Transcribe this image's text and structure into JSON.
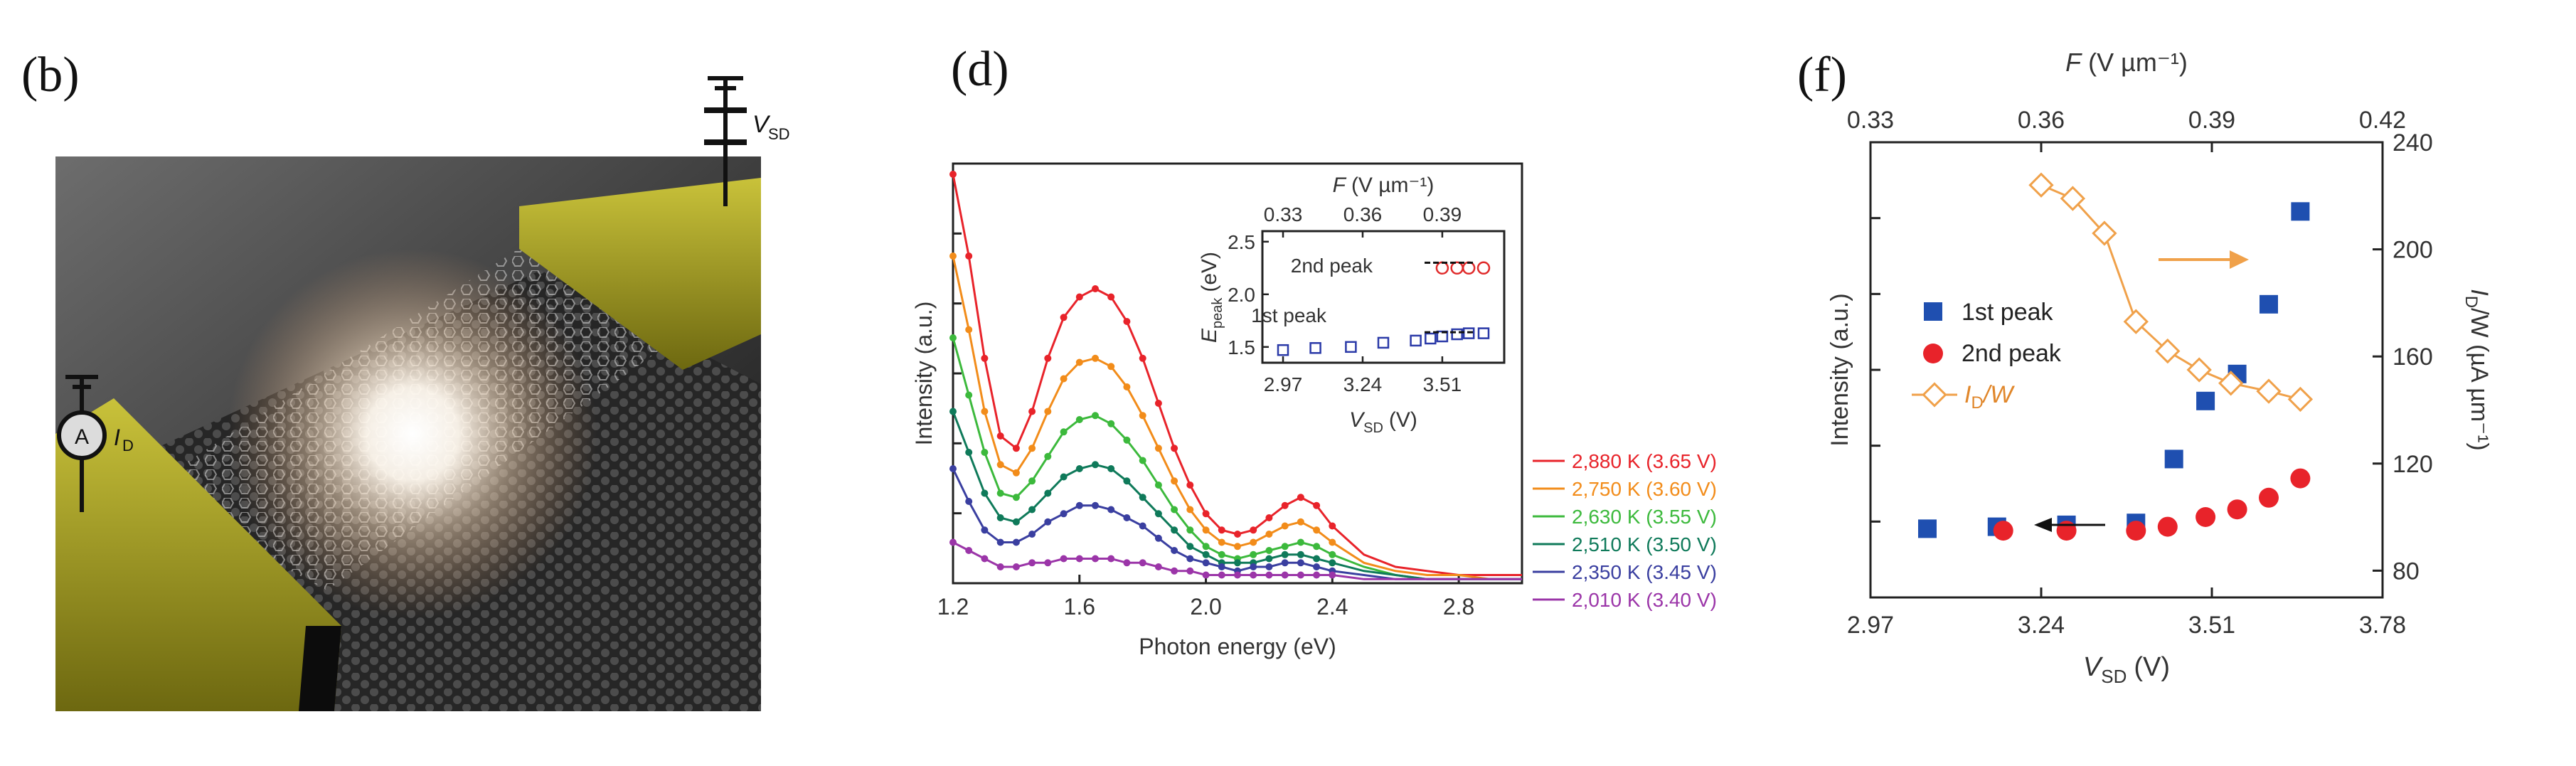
{
  "panel_b": {
    "label": "(b)",
    "vsd_label": "V",
    "vsd_sub": "SD",
    "ammeter": "A",
    "id_label": "I",
    "id_sub": "D"
  },
  "chart_data": [
    {
      "id": "d",
      "type": "line",
      "panel_label": "(d)",
      "title": "",
      "xlabel": "Photon energy (eV)",
      "ylabel": "Intensity (a.u.)",
      "xlim": [
        1.2,
        3.0
      ],
      "xticks": [
        "1.2",
        "1.6",
        "2.0",
        "2.4",
        "2.8"
      ],
      "series": [
        {
          "name": "2,880 K (3.65 V)",
          "color": "#e8232a",
          "x": [
            1.2,
            1.25,
            1.3,
            1.35,
            1.4,
            1.45,
            1.5,
            1.55,
            1.6,
            1.65,
            1.7,
            1.75,
            1.8,
            1.85,
            1.9,
            1.95,
            2.0,
            2.05,
            2.1,
            2.15,
            2.2,
            2.25,
            2.3,
            2.35,
            2.4,
            2.5,
            2.6,
            2.7,
            2.8,
            2.9,
            3.0
          ],
          "values": [
            1.0,
            0.8,
            0.55,
            0.36,
            0.33,
            0.42,
            0.55,
            0.65,
            0.7,
            0.72,
            0.7,
            0.64,
            0.55,
            0.44,
            0.33,
            0.24,
            0.17,
            0.13,
            0.12,
            0.13,
            0.16,
            0.19,
            0.21,
            0.19,
            0.14,
            0.07,
            0.04,
            0.03,
            0.02,
            0.02,
            0.02
          ]
        },
        {
          "name": "2,750 K (3.60 V)",
          "color": "#f28c1a",
          "x": [
            1.2,
            1.25,
            1.3,
            1.35,
            1.4,
            1.45,
            1.5,
            1.55,
            1.6,
            1.65,
            1.7,
            1.75,
            1.8,
            1.85,
            1.9,
            1.95,
            2.0,
            2.05,
            2.1,
            2.15,
            2.2,
            2.25,
            2.3,
            2.35,
            2.4,
            2.5,
            2.6,
            2.7,
            2.8,
            2.9,
            3.0
          ],
          "values": [
            0.8,
            0.62,
            0.42,
            0.29,
            0.27,
            0.33,
            0.42,
            0.5,
            0.54,
            0.55,
            0.53,
            0.48,
            0.41,
            0.33,
            0.25,
            0.18,
            0.13,
            0.1,
            0.09,
            0.1,
            0.12,
            0.14,
            0.15,
            0.13,
            0.1,
            0.05,
            0.03,
            0.02,
            0.02,
            0.01,
            0.01
          ]
        },
        {
          "name": "2,630 K (3.55 V)",
          "color": "#3cb93c",
          "x": [
            1.2,
            1.25,
            1.3,
            1.35,
            1.4,
            1.45,
            1.5,
            1.55,
            1.6,
            1.65,
            1.7,
            1.75,
            1.8,
            1.85,
            1.9,
            1.95,
            2.0,
            2.05,
            2.1,
            2.15,
            2.2,
            2.25,
            2.3,
            2.35,
            2.4,
            2.5,
            2.6,
            2.7,
            2.8,
            2.9,
            3.0
          ],
          "values": [
            0.6,
            0.46,
            0.32,
            0.22,
            0.21,
            0.25,
            0.31,
            0.37,
            0.4,
            0.41,
            0.39,
            0.35,
            0.3,
            0.24,
            0.18,
            0.13,
            0.09,
            0.07,
            0.06,
            0.07,
            0.08,
            0.09,
            0.1,
            0.09,
            0.07,
            0.04,
            0.02,
            0.01,
            0.01,
            0.01,
            0.01
          ]
        },
        {
          "name": "2,510 K (3.50 V)",
          "color": "#0f7a5a",
          "x": [
            1.2,
            1.25,
            1.3,
            1.35,
            1.4,
            1.45,
            1.5,
            1.55,
            1.6,
            1.65,
            1.7,
            1.75,
            1.8,
            1.85,
            1.9,
            1.95,
            2.0,
            2.05,
            2.1,
            2.15,
            2.2,
            2.25,
            2.3,
            2.35,
            2.4,
            2.5,
            2.6,
            2.7,
            2.8,
            2.9,
            3.0
          ],
          "values": [
            0.42,
            0.32,
            0.22,
            0.16,
            0.15,
            0.18,
            0.22,
            0.26,
            0.28,
            0.29,
            0.28,
            0.25,
            0.21,
            0.17,
            0.13,
            0.09,
            0.07,
            0.05,
            0.05,
            0.05,
            0.06,
            0.07,
            0.07,
            0.06,
            0.05,
            0.03,
            0.02,
            0.01,
            0.01,
            0.01,
            0.01
          ]
        },
        {
          "name": "2,350 K (3.45 V)",
          "color": "#3a3fa0",
          "x": [
            1.2,
            1.25,
            1.3,
            1.35,
            1.4,
            1.45,
            1.5,
            1.55,
            1.6,
            1.65,
            1.7,
            1.75,
            1.8,
            1.85,
            1.9,
            1.95,
            2.0,
            2.05,
            2.1,
            2.15,
            2.2,
            2.25,
            2.3,
            2.35,
            2.4,
            2.5,
            2.6,
            2.7,
            2.8,
            2.9,
            3.0
          ],
          "values": [
            0.28,
            0.2,
            0.13,
            0.1,
            0.1,
            0.12,
            0.15,
            0.17,
            0.19,
            0.19,
            0.18,
            0.16,
            0.14,
            0.11,
            0.08,
            0.06,
            0.05,
            0.04,
            0.03,
            0.04,
            0.04,
            0.05,
            0.05,
            0.04,
            0.03,
            0.02,
            0.01,
            0.01,
            0.01,
            0.01,
            0.01
          ]
        },
        {
          "name": "2,010 K (3.40 V)",
          "color": "#9b35a8",
          "x": [
            1.2,
            1.25,
            1.3,
            1.35,
            1.4,
            1.45,
            1.5,
            1.55,
            1.6,
            1.65,
            1.7,
            1.75,
            1.8,
            1.85,
            1.9,
            1.95,
            2.0,
            2.05,
            2.1,
            2.15,
            2.2,
            2.25,
            2.3,
            2.35,
            2.4,
            2.5,
            2.6,
            2.7,
            2.8,
            2.9,
            3.0
          ],
          "values": [
            0.1,
            0.08,
            0.06,
            0.04,
            0.04,
            0.05,
            0.05,
            0.06,
            0.06,
            0.06,
            0.06,
            0.05,
            0.05,
            0.04,
            0.03,
            0.03,
            0.02,
            0.02,
            0.02,
            0.02,
            0.02,
            0.02,
            0.02,
            0.02,
            0.02,
            0.01,
            0.01,
            0.01,
            0.01,
            0.01,
            0.01
          ]
        }
      ],
      "inset": {
        "type": "scatter",
        "xlabel_main": "V",
        "xlabel_sub": "SD",
        "xlabel_unit": "(V)",
        "top_label_main": "F",
        "top_label_unit": "(V µm⁻¹)",
        "ylabel_main": "E",
        "ylabel_sub": "peak",
        "ylabel_unit": "(eV)",
        "xlim": [
          2.9,
          3.72
        ],
        "ylim": [
          1.35,
          2.6
        ],
        "xticks": [
          "2.97",
          "3.24",
          "3.51"
        ],
        "xtick_values": [
          2.97,
          3.24,
          3.51
        ],
        "top_ticks": [
          "0.33",
          "0.36",
          "0.39"
        ],
        "top_tick_values": [
          2.97,
          3.24,
          3.51
        ],
        "yticks": [
          "1.5",
          "2.0",
          "2.5"
        ],
        "ytick_values": [
          1.5,
          2.0,
          2.5
        ],
        "annotations": [
          "2nd peak",
          "1st peak"
        ],
        "first_peak": {
          "x": [
            2.97,
            3.08,
            3.2,
            3.31,
            3.42,
            3.47,
            3.51,
            3.56,
            3.6,
            3.65
          ],
          "y": [
            1.47,
            1.49,
            1.5,
            1.54,
            1.56,
            1.58,
            1.6,
            1.62,
            1.63,
            1.63
          ],
          "color": "#2b3aa8"
        },
        "second_peak": {
          "x": [
            3.51,
            3.56,
            3.6,
            3.65
          ],
          "y": [
            2.25,
            2.25,
            2.25,
            2.25
          ],
          "color": "#e02b2b"
        }
      }
    },
    {
      "id": "f",
      "type": "scatter",
      "panel_label": "(f)",
      "title": "",
      "xlabel_main": "V",
      "xlabel_sub": "SD",
      "xlabel_unit": "(V)",
      "top_label_main": "F",
      "top_label_unit": "(V µm⁻¹)",
      "ylabel": "Intensity (a.u.)",
      "right_ylabel_main": "I",
      "right_ylabel_sub": "D",
      "right_ylabel_rest": "/W (µA µm⁻¹)",
      "xlim": [
        2.97,
        3.78
      ],
      "xticks": [
        "2.97",
        "3.24",
        "3.51",
        "3.78"
      ],
      "xtick_values": [
        2.97,
        3.24,
        3.51,
        3.78
      ],
      "top_ticks": [
        "0.33",
        "0.36",
        "0.39",
        "0.42"
      ],
      "top_tick_values": [
        2.97,
        3.24,
        3.51,
        3.78
      ],
      "right_ylim": [
        70,
        240
      ],
      "right_yticks": [
        "80",
        "120",
        "160",
        "200",
        "240"
      ],
      "right_ytick_values": [
        80,
        120,
        160,
        200,
        240
      ],
      "ylim": [
        0,
        1
      ],
      "legend": [
        "1st peak",
        "2nd peak",
        "I",
        "/W"
      ],
      "series": [
        {
          "name": "1st peak",
          "color": "#1f4fb0",
          "marker": "square",
          "x": [
            3.06,
            3.17,
            3.28,
            3.39,
            3.45,
            3.5,
            3.55,
            3.6,
            3.65
          ],
          "values": [
            0.06,
            0.065,
            0.07,
            0.075,
            0.24,
            0.39,
            0.46,
            0.64,
            0.88
          ]
        },
        {
          "name": "2nd peak",
          "color": "#e8232a",
          "marker": "circle",
          "x": [
            3.18,
            3.28,
            3.39,
            3.44,
            3.5,
            3.55,
            3.6,
            3.65
          ],
          "values": [
            0.055,
            0.055,
            0.055,
            0.065,
            0.09,
            0.11,
            0.14,
            0.19
          ]
        },
        {
          "name": "I_D/W",
          "color": "#f0a14a",
          "marker": "open-diamond",
          "axis": "right",
          "x": [
            3.24,
            3.29,
            3.34,
            3.39,
            3.44,
            3.49,
            3.54,
            3.6,
            3.65
          ],
          "values": [
            224,
            219,
            206,
            173,
            162,
            155,
            150,
            147,
            144
          ]
        }
      ]
    }
  ]
}
